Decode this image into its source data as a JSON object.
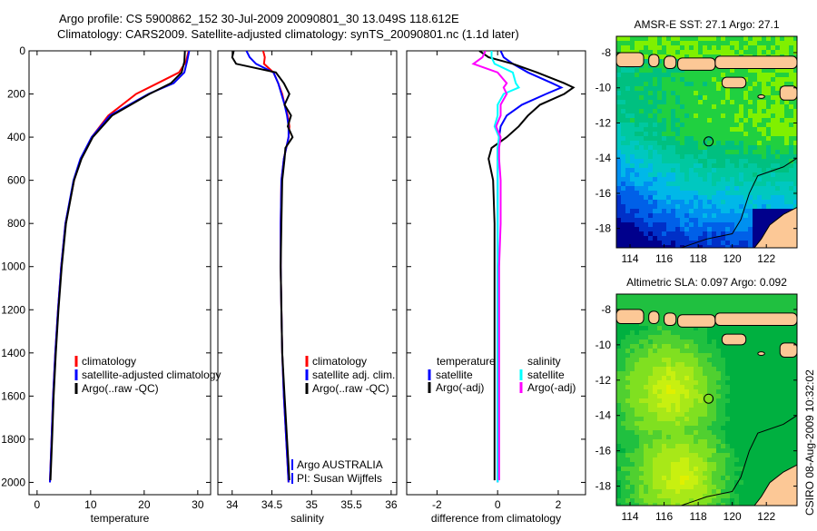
{
  "title_line1": "Argo profile: CS 5900862_152 30-Jul-2009 20090801_30 13.049S 118.612E",
  "title_line2": "Climatology: CARS2009. Satellite-adjusted climatology: synTS_20090801.nc (1.1d later)",
  "footer_vertical": "CSIRO 08-Aug-2009 10:32:02",
  "colors": {
    "red": "#ff0000",
    "blue": "#0000ff",
    "black": "#000000",
    "cyan": "#00ffff",
    "magenta": "#ff00ff",
    "land": "#fcc896"
  },
  "chart_data": [
    {
      "type": "line",
      "id": "temperature",
      "xlabel": "temperature",
      "ylabel": "",
      "xlim": [
        -1.5,
        32.4
      ],
      "ylim": [
        2057,
        0
      ],
      "xticks": [
        0,
        10,
        20,
        30
      ],
      "yticks": [
        0,
        200,
        400,
        600,
        800,
        1000,
        1200,
        1400,
        1600,
        1800,
        2000
      ],
      "depth": [
        0,
        50,
        100,
        150,
        200,
        300,
        400,
        500,
        600,
        800,
        1000,
        1200,
        1400,
        1600,
        1800,
        2000
      ],
      "series": [
        {
          "name": "climatology",
          "color": "#ff0000",
          "values": [
            28.3,
            27.8,
            26.5,
            22.5,
            18.5,
            13.3,
            10.2,
            8.2,
            6.9,
            5.3,
            4.5,
            3.9,
            3.4,
            3.0,
            2.7,
            2.4
          ]
        },
        {
          "name": "satellite-adjusted climatology",
          "color": "#0000ff",
          "values": [
            28.4,
            28.0,
            27.5,
            25.5,
            20.8,
            13.6,
            10.2,
            8.1,
            6.8,
            5.3,
            4.5,
            3.9,
            3.4,
            3.0,
            2.7,
            2.4
          ]
        },
        {
          "name": "Argo(..raw -QC)",
          "color": "#000000",
          "values": [
            27.6,
            27.5,
            27.0,
            25.0,
            21.0,
            14.0,
            10.4,
            8.3,
            6.9,
            5.4,
            4.6,
            4.0,
            3.5,
            3.1,
            2.8,
            2.5
          ]
        }
      ],
      "legend": [
        "climatology",
        "satellite-adjusted climatology",
        "Argo(..raw -QC)"
      ]
    },
    {
      "type": "line",
      "id": "salinity",
      "xlabel": "salinity",
      "ylabel": "",
      "xlim": [
        33.82,
        36.07
      ],
      "ylim": [
        2057,
        0
      ],
      "xticks": [
        34,
        34.5,
        35,
        35.5,
        36
      ],
      "depth": [
        0,
        30,
        60,
        100,
        150,
        200,
        250,
        300,
        350,
        400,
        450,
        500,
        600,
        800,
        1000,
        1200,
        1400,
        1600,
        1800,
        2000
      ],
      "series": [
        {
          "name": "climatology",
          "color": "#ff0000",
          "values": [
            34.39,
            34.41,
            34.4,
            34.52,
            34.58,
            34.63,
            34.66,
            34.7,
            34.72,
            34.71,
            34.68,
            34.65,
            34.62,
            34.61,
            34.61,
            34.62,
            34.63,
            34.65,
            34.68,
            34.71
          ]
        },
        {
          "name": "satellite adj. clim.",
          "color": "#0000ff",
          "values": [
            34.18,
            34.22,
            34.3,
            34.52,
            34.58,
            34.62,
            34.66,
            34.69,
            34.71,
            34.71,
            34.68,
            34.65,
            34.62,
            34.61,
            34.61,
            34.62,
            34.63,
            34.65,
            34.68,
            34.71
          ]
        },
        {
          "name": "Argo(..raw -QC)",
          "color": "#000000",
          "values": [
            34.02,
            34.0,
            34.05,
            34.55,
            34.65,
            34.72,
            34.66,
            34.74,
            34.7,
            34.76,
            34.67,
            34.66,
            34.63,
            34.62,
            34.61,
            34.62,
            34.63,
            34.66,
            34.69,
            34.72
          ]
        }
      ],
      "legend": [
        "climatology",
        "satellite adj. clim.",
        "Argo(..raw -QC)"
      ],
      "annotation": [
        "Argo AUSTRALIA",
        "PI: Susan Wijffels"
      ]
    },
    {
      "type": "line",
      "id": "difference",
      "xlabel": "difference from climatology",
      "ylabel": "",
      "xlim": [
        -3.0,
        2.9
      ],
      "ylim": [
        2057,
        0
      ],
      "xticks": [
        -2,
        0,
        2
      ],
      "depth": [
        0,
        30,
        60,
        100,
        150,
        170,
        200,
        250,
        300,
        350,
        400,
        450,
        500,
        600,
        800,
        1000,
        1200,
        1400,
        1600,
        1800,
        2000
      ],
      "series": [
        {
          "name": "temperature satellite",
          "color": "#0000ff",
          "values": [
            0.1,
            0.2,
            0.5,
            1.0,
            1.8,
            2.1,
            1.6,
            0.8,
            0.3,
            0.1,
            0.05,
            0,
            0,
            0,
            0,
            0,
            0,
            0,
            0,
            0,
            0
          ]
        },
        {
          "name": "temperature Argo(-adj)",
          "color": "#000000",
          "values": [
            -0.6,
            -0.3,
            0.5,
            1.3,
            2.2,
            2.5,
            2.2,
            1.4,
            1.0,
            0.7,
            0.3,
            -0.2,
            -0.3,
            -0.15,
            -0.1,
            -0.1,
            -0.1,
            -0.1,
            -0.1,
            -0.1,
            -0.1
          ]
        },
        {
          "name": "salinity satellite",
          "color": "#00ffff",
          "values": [
            -0.2,
            -0.2,
            -0.1,
            0.5,
            0.6,
            0.7,
            0.2,
            0.0,
            0.0,
            -0.1,
            0.05,
            0,
            0,
            0,
            0,
            0,
            0,
            0,
            0,
            0,
            0
          ]
        },
        {
          "name": "salinity Argo(-adj)",
          "color": "#ff00ff",
          "values": [
            -0.4,
            -0.5,
            -0.8,
            0.0,
            0.3,
            0.2,
            0.3,
            0.1,
            0.1,
            -0.05,
            0.1,
            0.05,
            0.05,
            0.1,
            0.1,
            0.05,
            0.05,
            0.05,
            0.05,
            0.05,
            0.05
          ]
        }
      ],
      "legend_headers": [
        "temperature",
        "salinity"
      ],
      "legend": [
        "satellite",
        "Argo(-adj)",
        "satellite",
        "Argo(-adj)"
      ]
    }
  ],
  "maps": [
    {
      "title": "AMSR-E SST: 27.1 Argo: 27.1",
      "kind": "sst",
      "xticks": [
        114,
        116,
        118,
        120,
        122
      ],
      "yticks": [
        -8,
        -10,
        -12,
        -14,
        -16,
        -18
      ],
      "lon": [
        113.2,
        123.8
      ],
      "lat": [
        -7.07,
        -19.1
      ],
      "marker": [
        118.612,
        -13.049
      ]
    },
    {
      "title": "Altimetric SLA: 0.097 Argo: 0.092",
      "kind": "sla",
      "xticks": [
        114,
        116,
        118,
        120,
        122
      ],
      "yticks": [
        -8,
        -10,
        -12,
        -14,
        -16,
        -18
      ],
      "lon": [
        113.2,
        123.8
      ],
      "lat": [
        -7.13,
        -19.1
      ],
      "marker": [
        118.612,
        -13.049
      ]
    }
  ]
}
